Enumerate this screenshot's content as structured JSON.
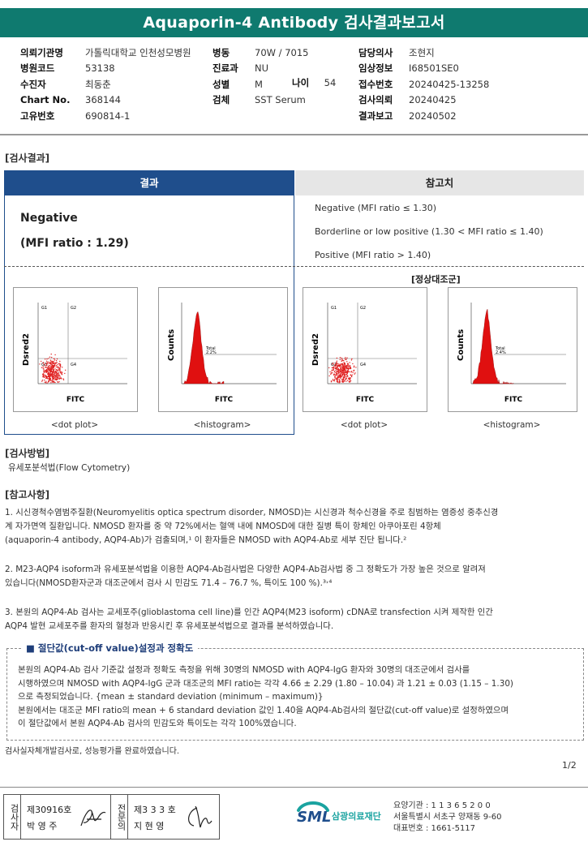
{
  "header": {
    "title": "Aquaporin-4 Antibody 검사결과보고서"
  },
  "info": {
    "col1": [
      {
        "label": "의뢰기관명",
        "value": "가톨릭대학교 인천성모병원"
      },
      {
        "label": "병원코드",
        "value": "53138"
      },
      {
        "label": "수진자",
        "value": "최동춘"
      },
      {
        "label": "Chart No.",
        "value": "368144"
      },
      {
        "label": "고유번호",
        "value": "690814-1"
      }
    ],
    "col2": [
      {
        "label": "병동",
        "value": "70W / 7015"
      },
      {
        "label": "진료과",
        "value": "NU"
      },
      {
        "label": "성별",
        "value": "M"
      },
      {
        "label": "검체",
        "value": "SST Serum"
      }
    ],
    "age": {
      "label": "나이",
      "value": "54"
    },
    "col3": [
      {
        "label": "담당의사",
        "value": "조현지"
      },
      {
        "label": "임상정보",
        "value": "I68501SE0"
      },
      {
        "label": "접수번호",
        "value": "20240425-13258"
      },
      {
        "label": "검사의뢰",
        "value": "20240425"
      },
      {
        "label": "결과보고",
        "value": "20240502"
      }
    ]
  },
  "result_section": {
    "title": "[검사결과]",
    "result_header": "결과",
    "reference_header": "참고치",
    "result_value": "Negative",
    "result_ratio": "(MFI ratio : 1.29)",
    "reference_lines": [
      "Negative (MFI ratio ≤ 1.30)",
      "Borderline or low positive (1.30 < MFI ratio ≤ 1.40)",
      "Positive (MFI ratio > 1.40)"
    ],
    "normal_control_label": "[정상대조군]",
    "plots": {
      "dot_ylabel": "Dsred2",
      "hist_ylabel": "Counts",
      "xlabel": "FITC",
      "quadrants": [
        "G1",
        "G2",
        "G3",
        "G4"
      ],
      "patient_total": "Total",
      "patient_total_pct": "2.2%",
      "control_total": "Total",
      "control_total_pct": "2.4%",
      "dot_caption": "<dot plot>",
      "hist_caption": "<histogram>"
    }
  },
  "method_section": {
    "title": "[검사방법]",
    "text": "유세포분석법(Flow Cytometry)"
  },
  "notes_section": {
    "title": "[참고사항]",
    "p1_l1": "1. 시신경척수염범주질환(Neuromyelitis optica spectrum disorder, NMOSD)는 시신경과 척수신경을 주로 침범하는 염증성 중추신경",
    "p1_l2": "계 자가면역 질환입니다. NMOSD 환자를 중 약 72%에서는 혈액 내에 NMOSD에 대한 질병 특이 항체인 아쿠아포린 4항체",
    "p1_l3": "(aquaporin-4 antibody, AQP4-Ab)가 검출되며,¹ 이 환자들은 NMOSD with AQP4-Ab로 세부 진단 됩니다.²",
    "p2_l1": "2. M23-AQP4 isoform과 유세포분석법을 이용한 AQP4-Ab검사법은 다양한 AQP4-Ab검사법 중 그 정확도가 가장 높은 것으로 알려져",
    "p2_l2": " 있습니다(NMOSD환자군과 대조군에서 검사 시 민감도 71.4 – 76.7 %, 특이도 100 %).³˒⁴",
    "p3_l1": "3. 본원의 AQP4-Ab 검사는 교세포주(glioblastoma cell line)를 인간 AQP4(M23 isoform) cDNA로 transfection 시켜 제작한 인간",
    "p3_l2": "AQP4 발현 교세포주를 환자의 혈청과 반응시킨 후 유세포분석법으로 결과를 분석하였습니다."
  },
  "cutoff_section": {
    "title": "■ 절단값(cut-off value)설정과 정확도",
    "l1": "본원의 AQP4-Ab 검사 기준값 설정과 정확도 측정을 위해 30명의 NMOSD with AQP4-IgG 환자와 30명의 대조군에서 검사를",
    "l2": "시행하였으며 NMOSD with AQP4-IgG 군과 대조군의 MFI ratio는 각각 4.66 ± 2.29 (1.80 – 10.04) 과 1.21 ± 0.03 (1.15 – 1.30)",
    "l3": "으로  측정되었습니다. {mean ± standard deviation (minimum – maximum)}",
    "l4": "본원에서는 대조군 MFI ratio의 mean + 6 standard deviation 값인 1.40을 AQP4-Ab검사의 절단값(cut-off value)로 설정하였으며",
    "l5": "이 절단값에서 본원 AQP4-Ab 검사의 민감도와 특이도는 각각 100%였습니다."
  },
  "footer": {
    "note": "검사실자체개발검사로, 성능평가를 완료하였습니다.",
    "page": "1/2",
    "sig1_label": "검사자",
    "sig1_no": "제30916호",
    "sig1_name": "박 영 주",
    "sig2_label": "전문의",
    "sig2_no": "제3 3 3 호",
    "sig2_name": "지 현 영",
    "logo_text": "SML",
    "company": "삼광의료재단",
    "addr1": "요양기관 : 1 1 3 6 5 2 0 0",
    "addr2": "서울특별시 서초구 양재동 9-60",
    "addr3": "대표번호 : 1661-5117"
  },
  "colors": {
    "banner": "#0f7a6f",
    "result_header": "#1f4e8c",
    "histogram": "#e01010",
    "dots": "#e02020"
  }
}
